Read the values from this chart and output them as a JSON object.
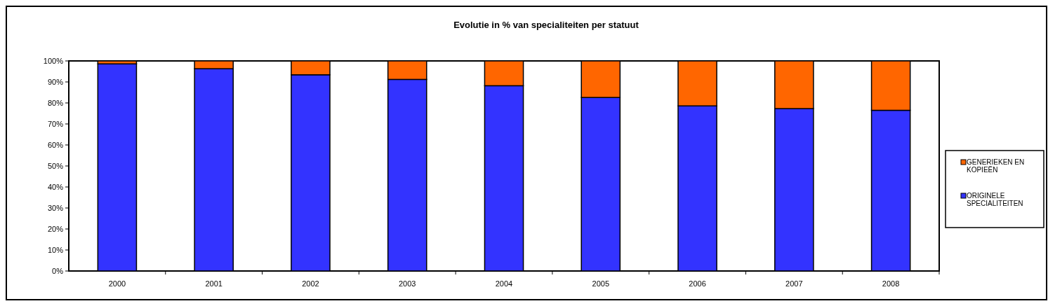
{
  "chart_data": {
    "type": "bar",
    "title": "Evolutie in % van specialiteiten per statuut",
    "categories": [
      "2000",
      "2001",
      "2002",
      "2003",
      "2004",
      "2005",
      "2006",
      "2007",
      "2008"
    ],
    "stacked": true,
    "series": [
      {
        "name": "ORIGINELE SPECIALITEITEN",
        "color": "#3333ff",
        "values": [
          98.6,
          96.3,
          93.4,
          91.2,
          88.2,
          82.6,
          78.6,
          77.3,
          76.5
        ]
      },
      {
        "name": "GENERIEKEN EN KOPIEËN",
        "color": "#ff6600",
        "values": [
          1.4,
          3.7,
          6.6,
          8.8,
          11.8,
          17.4,
          21.4,
          22.7,
          23.5
        ]
      }
    ],
    "ylim": [
      0,
      100
    ],
    "yticks": [
      {
        "value": 0,
        "label": "0%"
      },
      {
        "value": 10,
        "label": "10%"
      },
      {
        "value": 20,
        "label": "20%"
      },
      {
        "value": 30,
        "label": "30%"
      },
      {
        "value": 40,
        "label": "40%"
      },
      {
        "value": 50,
        "label": "50%"
      },
      {
        "value": 60,
        "label": "60%"
      },
      {
        "value": 70,
        "label": "70%"
      },
      {
        "value": 80,
        "label": "80%"
      },
      {
        "value": 90,
        "label": "90%"
      },
      {
        "value": 100,
        "label": "100%"
      }
    ],
    "legend": "right"
  }
}
